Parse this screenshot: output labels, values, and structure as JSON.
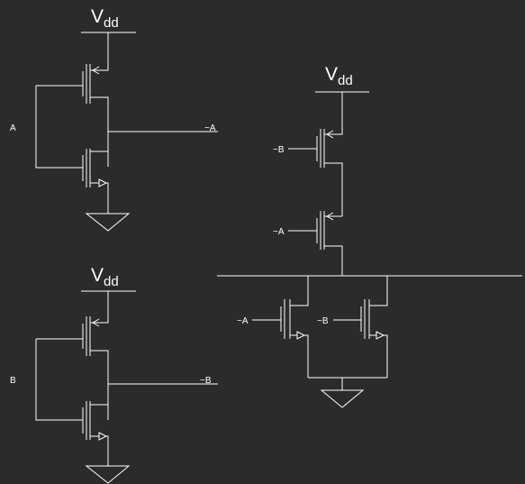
{
  "circuits": [
    {
      "id": "inverter-a",
      "supply_label": "V",
      "supply_subscript": "dd",
      "input_label": "A",
      "output_label": "~A"
    },
    {
      "id": "inverter-b",
      "supply_label": "V",
      "supply_subscript": "dd",
      "input_label": "B",
      "output_label": "~B"
    },
    {
      "id": "nor-gate",
      "supply_label": "V",
      "supply_subscript": "dd",
      "pull_up_inputs": [
        "~B",
        "~A"
      ],
      "pull_down_inputs": [
        "~A",
        "~B"
      ]
    }
  ]
}
